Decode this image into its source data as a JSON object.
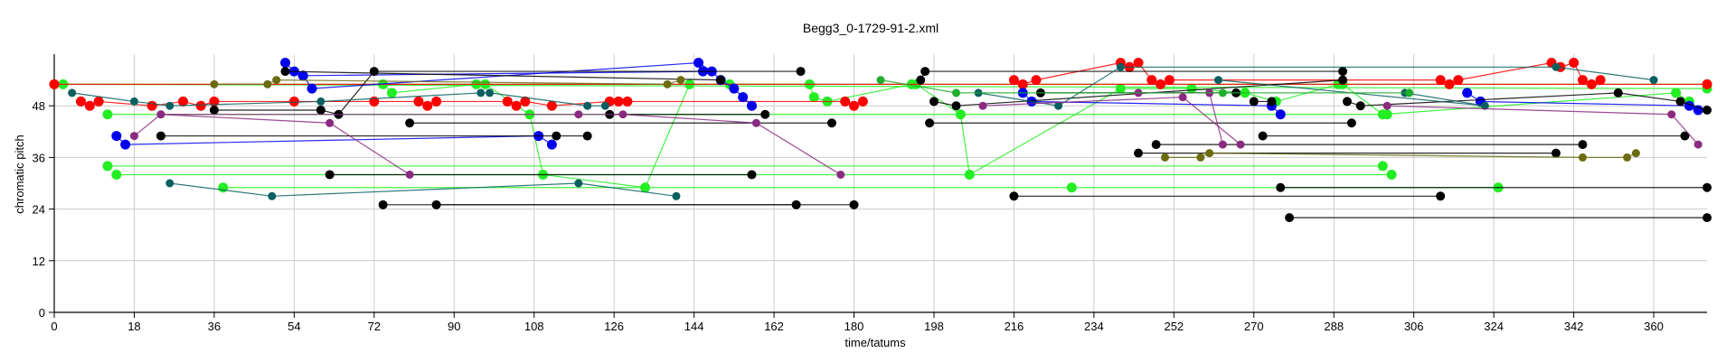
{
  "chart_data": {
    "type": "scatter",
    "title": "Begg3_0-1729-91-2.xml",
    "xlabel": "time/tatums",
    "ylabel": "chromatic pitch",
    "xlim": [
      0,
      372
    ],
    "ylim": [
      0,
      60
    ],
    "xticks": [
      0,
      18,
      36,
      54,
      72,
      90,
      108,
      126,
      144,
      162,
      180,
      198,
      216,
      234,
      252,
      270,
      288,
      306,
      324,
      342,
      360
    ],
    "yticks": [
      0,
      12,
      24,
      36,
      48
    ],
    "grid": true,
    "colors": {
      "lime": "#22ee22",
      "red": "#ff0000",
      "blue": "#0000ee",
      "black": "#000000",
      "teal": "#0a6060",
      "purple": "#8a2a80",
      "olive": "#6b6b10",
      "green": "#1fae2e"
    },
    "series": [
      {
        "color": "lime",
        "points": [
          [
            0,
            53
          ],
          [
            372,
            53
          ]
        ]
      },
      {
        "color": "lime",
        "points": [
          [
            2,
            53
          ],
          [
            372,
            52
          ]
        ]
      },
      {
        "color": "lime",
        "points": [
          [
            12,
            46
          ],
          [
            300,
            46
          ]
        ]
      },
      {
        "color": "lime",
        "points": [
          [
            12,
            34
          ],
          [
            299,
            34
          ]
        ]
      },
      {
        "color": "lime",
        "points": [
          [
            14,
            32
          ],
          [
            301,
            32
          ]
        ]
      },
      {
        "color": "lime",
        "points": [
          [
            38,
            29
          ],
          [
            229,
            29
          ],
          [
            325,
            29
          ]
        ]
      },
      {
        "color": "lime",
        "points": [
          [
            74,
            53
          ],
          [
            76,
            51
          ],
          [
            95,
            53
          ],
          [
            97,
            53
          ],
          [
            107,
            46
          ],
          [
            110,
            32
          ],
          [
            133,
            29
          ],
          [
            143,
            53
          ],
          [
            152,
            53
          ],
          [
            170,
            53
          ],
          [
            171,
            50
          ],
          [
            174,
            49
          ],
          [
            193,
            53
          ],
          [
            194,
            53
          ],
          [
            204,
            46
          ],
          [
            206,
            32
          ],
          [
            240,
            52
          ],
          [
            256,
            52
          ],
          [
            268,
            51
          ],
          [
            275,
            49
          ],
          [
            289,
            53
          ],
          [
            290,
            53
          ],
          [
            299,
            46
          ],
          [
            365,
            51
          ],
          [
            368,
            49
          ]
        ]
      },
      {
        "color": "red",
        "points": [
          [
            6,
            49
          ],
          [
            8,
            48
          ],
          [
            10,
            49
          ],
          [
            22,
            48
          ],
          [
            29,
            49
          ],
          [
            33,
            48
          ],
          [
            36,
            49
          ],
          [
            54,
            49
          ],
          [
            72,
            49
          ],
          [
            82,
            49
          ],
          [
            84,
            48
          ],
          [
            86,
            49
          ],
          [
            102,
            49
          ],
          [
            104,
            48
          ],
          [
            106,
            49
          ],
          [
            112,
            48
          ],
          [
            125,
            49
          ],
          [
            127,
            49
          ],
          [
            129,
            49
          ],
          [
            178,
            49
          ],
          [
            180,
            48
          ],
          [
            182,
            49
          ]
        ]
      },
      {
        "color": "red",
        "points": [
          [
            216,
            54
          ],
          [
            218,
            53
          ],
          [
            221,
            54
          ],
          [
            240,
            58
          ],
          [
            242,
            57
          ],
          [
            244,
            58
          ],
          [
            247,
            54
          ],
          [
            249,
            53
          ],
          [
            251,
            54
          ],
          [
            312,
            54
          ],
          [
            314,
            53
          ],
          [
            316,
            54
          ],
          [
            337,
            58
          ],
          [
            339,
            57
          ],
          [
            342,
            58
          ],
          [
            344,
            54
          ],
          [
            346,
            53
          ],
          [
            348,
            54
          ]
        ]
      },
      {
        "color": "red",
        "points": [
          [
            0,
            53
          ],
          [
            372,
            53
          ]
        ]
      },
      {
        "color": "blue",
        "points": [
          [
            14,
            41
          ],
          [
            16,
            39
          ],
          [
            109,
            41
          ],
          [
            112,
            39
          ]
        ]
      },
      {
        "color": "blue",
        "points": [
          [
            52,
            58
          ],
          [
            54,
            56
          ],
          [
            56,
            55
          ],
          [
            58,
            52
          ],
          [
            145,
            58
          ],
          [
            148,
            56
          ],
          [
            150,
            54
          ],
          [
            153,
            52
          ],
          [
            155,
            50
          ],
          [
            157,
            48
          ]
        ]
      },
      {
        "color": "blue",
        "points": [
          [
            56,
            55
          ],
          [
            146,
            56
          ]
        ]
      },
      {
        "color": "blue",
        "points": [
          [
            218,
            51
          ],
          [
            220,
            49
          ],
          [
            274,
            48
          ],
          [
            276,
            46
          ]
        ]
      },
      {
        "color": "blue",
        "points": [
          [
            318,
            51
          ],
          [
            321,
            49
          ],
          [
            368,
            48
          ],
          [
            370,
            47
          ]
        ]
      },
      {
        "color": "black",
        "points": [
          [
            24,
            41
          ],
          [
            120,
            41
          ],
          [
            113,
            41
          ]
        ]
      },
      {
        "color": "black",
        "points": [
          [
            36,
            47
          ],
          [
            60,
            47
          ],
          [
            64,
            46
          ],
          [
            72,
            56
          ],
          [
            168,
            56
          ]
        ]
      },
      {
        "color": "black",
        "points": [
          [
            52,
            56
          ],
          [
            150,
            54
          ]
        ]
      },
      {
        "color": "black",
        "points": [
          [
            80,
            44
          ],
          [
            175,
            44
          ]
        ]
      },
      {
        "color": "black",
        "points": [
          [
            62,
            32
          ],
          [
            157,
            32
          ]
        ]
      },
      {
        "color": "black",
        "points": [
          [
            74,
            25
          ],
          [
            167,
            25
          ]
        ]
      },
      {
        "color": "black",
        "points": [
          [
            86,
            25
          ],
          [
            180,
            25
          ]
        ]
      },
      {
        "color": "black",
        "points": [
          [
            125,
            46
          ],
          [
            160,
            46
          ]
        ]
      },
      {
        "color": "black",
        "points": [
          [
            195,
            54
          ],
          [
            196,
            56
          ],
          [
            290,
            56
          ]
        ]
      },
      {
        "color": "black",
        "points": [
          [
            198,
            49
          ],
          [
            203,
            48
          ],
          [
            290,
            54
          ]
        ]
      },
      {
        "color": "black",
        "points": [
          [
            197,
            44
          ],
          [
            292,
            44
          ]
        ]
      },
      {
        "color": "black",
        "points": [
          [
            222,
            51
          ],
          [
            266,
            51
          ]
        ]
      },
      {
        "color": "black",
        "points": [
          [
            244,
            37
          ],
          [
            338,
            37
          ]
        ]
      },
      {
        "color": "black",
        "points": [
          [
            248,
            39
          ],
          [
            344,
            39
          ]
        ]
      },
      {
        "color": "black",
        "points": [
          [
            272,
            41
          ],
          [
            367,
            41
          ]
        ]
      },
      {
        "color": "black",
        "points": [
          [
            216,
            27
          ],
          [
            312,
            27
          ]
        ]
      },
      {
        "color": "black",
        "points": [
          [
            276,
            29
          ],
          [
            372,
            29
          ]
        ]
      },
      {
        "color": "black",
        "points": [
          [
            278,
            22
          ],
          [
            374,
            22
          ]
        ]
      },
      {
        "color": "black",
        "points": [
          [
            291,
            49
          ],
          [
            294,
            48
          ],
          [
            352,
            51
          ],
          [
            366,
            49
          ],
          [
            372,
            47
          ]
        ]
      },
      {
        "color": "black",
        "points": [
          [
            270,
            49
          ],
          [
            274,
            49
          ]
        ]
      },
      {
        "color": "teal",
        "points": [
          [
            4,
            51
          ],
          [
            18,
            49
          ],
          [
            26,
            48
          ],
          [
            60,
            49
          ],
          [
            96,
            51
          ],
          [
            98,
            51
          ],
          [
            120,
            48
          ],
          [
            124,
            48
          ]
        ]
      },
      {
        "color": "teal",
        "points": [
          [
            26,
            30
          ],
          [
            49,
            27
          ],
          [
            118,
            30
          ],
          [
            140,
            27
          ]
        ]
      },
      {
        "color": "teal",
        "points": [
          [
            208,
            51
          ],
          [
            226,
            48
          ],
          [
            240,
            57
          ],
          [
            338,
            57
          ],
          [
            360,
            54
          ]
        ]
      },
      {
        "color": "teal",
        "points": [
          [
            262,
            54
          ],
          [
            322,
            48
          ],
          [
            304,
            51
          ]
        ]
      },
      {
        "color": "purple",
        "points": [
          [
            18,
            41
          ],
          [
            24,
            46
          ],
          [
            62,
            44
          ],
          [
            80,
            32
          ]
        ]
      },
      {
        "color": "purple",
        "points": [
          [
            24,
            46
          ],
          [
            118,
            46
          ],
          [
            128,
            46
          ],
          [
            158,
            44
          ],
          [
            177,
            32
          ]
        ]
      },
      {
        "color": "purple",
        "points": [
          [
            244,
            51
          ],
          [
            260,
            51
          ],
          [
            263,
            39
          ]
        ]
      },
      {
        "color": "purple",
        "points": [
          [
            209,
            48
          ],
          [
            254,
            50
          ],
          [
            267,
            39
          ]
        ]
      },
      {
        "color": "purple",
        "points": [
          [
            300,
            48
          ],
          [
            364,
            46
          ],
          [
            370,
            39
          ]
        ]
      },
      {
        "color": "olive",
        "points": [
          [
            36,
            53
          ],
          [
            48,
            53
          ],
          [
            50,
            54
          ],
          [
            138,
            53
          ],
          [
            141,
            54
          ]
        ]
      },
      {
        "color": "olive",
        "points": [
          [
            250,
            36
          ],
          [
            258,
            36
          ],
          [
            260,
            37
          ],
          [
            344,
            36
          ],
          [
            354,
            36
          ],
          [
            356,
            37
          ]
        ]
      },
      {
        "color": "green",
        "points": [
          [
            186,
            54
          ],
          [
            203,
            51
          ],
          [
            263,
            51
          ],
          [
            305,
            51
          ]
        ]
      }
    ]
  }
}
